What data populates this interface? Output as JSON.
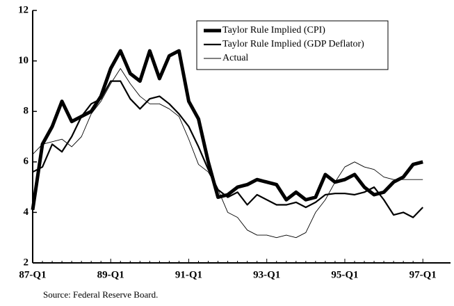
{
  "chart_data": {
    "type": "line",
    "categories": [
      "87-Q1",
      null,
      null,
      null,
      null,
      null,
      null,
      null,
      "89-Q1",
      null,
      null,
      null,
      null,
      null,
      null,
      null,
      "91-Q1",
      null,
      null,
      null,
      null,
      null,
      null,
      null,
      "93-Q1",
      null,
      null,
      null,
      null,
      null,
      null,
      null,
      "95-Q1",
      null,
      null,
      null,
      null,
      null,
      null,
      null,
      "97-Q1"
    ],
    "series": [
      {
        "name": "Taylor Rule Implied (CPI)",
        "color": "#000000",
        "width": 5,
        "values": [
          4.1,
          6.7,
          7.4,
          8.4,
          7.6,
          7.8,
          8.0,
          8.6,
          9.7,
          10.4,
          9.5,
          9.2,
          10.4,
          9.3,
          10.2,
          10.4,
          8.4,
          7.7,
          6.0,
          4.6,
          4.7,
          5.0,
          5.1,
          5.3,
          5.2,
          5.1,
          4.5,
          4.8,
          4.5,
          4.6,
          5.5,
          5.2,
          5.3,
          5.5,
          5.0,
          4.7,
          4.8,
          5.2,
          5.4,
          5.9,
          6.0
        ]
      },
      {
        "name": "Taylor Rule Implied (GDP Deflator)",
        "color": "#000000",
        "width": 2.2,
        "values": [
          5.6,
          5.8,
          6.7,
          6.4,
          7.0,
          7.8,
          8.3,
          8.5,
          9.2,
          9.2,
          8.5,
          8.1,
          8.5,
          8.6,
          8.3,
          7.9,
          7.4,
          6.6,
          5.7,
          4.9,
          4.6,
          4.8,
          4.3,
          4.7,
          4.5,
          4.3,
          4.3,
          4.4,
          4.2,
          4.4,
          4.7,
          4.75,
          4.75,
          4.7,
          4.8,
          5.0,
          4.5,
          3.9,
          4.0,
          3.8,
          4.2
        ]
      },
      {
        "name": "Actual",
        "color": "#000000",
        "width": 0.9,
        "values": [
          6.3,
          6.7,
          6.8,
          6.9,
          6.6,
          7.0,
          7.9,
          8.4,
          9.1,
          9.7,
          9.1,
          8.6,
          8.3,
          8.3,
          8.1,
          7.8,
          6.9,
          5.9,
          5.6,
          4.9,
          4.0,
          3.8,
          3.3,
          3.1,
          3.1,
          3.0,
          3.1,
          3.0,
          3.2,
          4.0,
          4.5,
          5.2,
          5.8,
          6.0,
          5.8,
          5.7,
          5.4,
          5.3,
          5.3,
          5.3,
          5.3
        ]
      }
    ],
    "ylim": [
      2,
      12
    ],
    "yticks": [
      2,
      4,
      6,
      8,
      10,
      12
    ],
    "legend": "top-right",
    "source": "Source: Federal Reserve Board."
  }
}
